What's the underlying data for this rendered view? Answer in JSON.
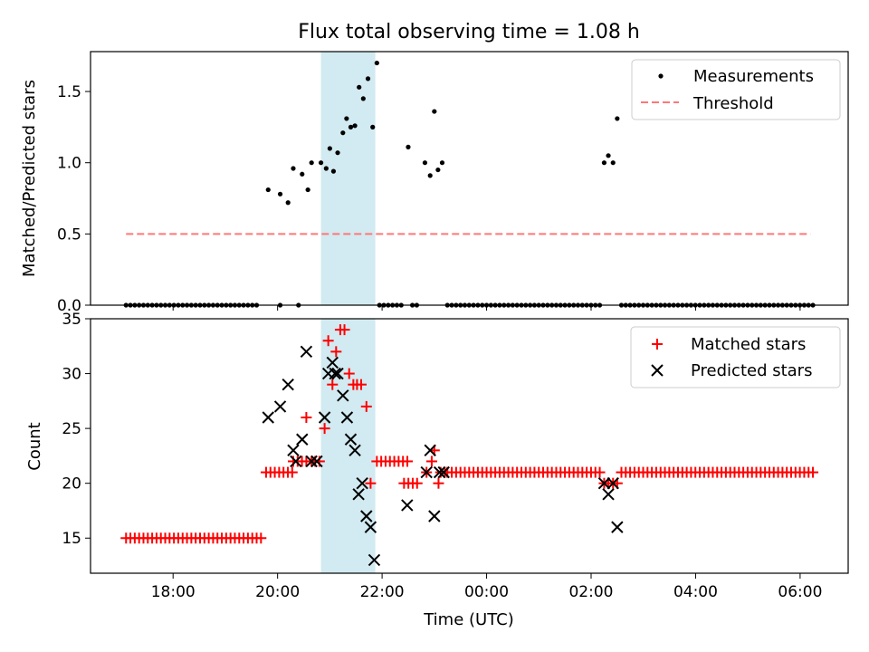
{
  "title": "Flux total observing time = 1.08 h",
  "x_axis": {
    "label": "Time (UTC)",
    "ticks": [
      {
        "t": 18,
        "label": "18:00"
      },
      {
        "t": 20,
        "label": "20:00"
      },
      {
        "t": 22,
        "label": "22:00"
      },
      {
        "t": 24,
        "label": "00:00"
      },
      {
        "t": 26,
        "label": "02:00"
      },
      {
        "t": 28,
        "label": "04:00"
      },
      {
        "t": 30,
        "label": "06:00"
      }
    ],
    "range_hours": [
      16.42,
      30.92
    ]
  },
  "chart_data": [
    {
      "type": "scatter",
      "panel": "top",
      "ylabel": "Matched/Predicted stars",
      "ylim": [
        0,
        1.78
      ],
      "yticks": [
        {
          "v": 0.0,
          "label": "0.0"
        },
        {
          "v": 0.5,
          "label": "0.5"
        },
        {
          "v": 1.0,
          "label": "1.0"
        },
        {
          "v": 1.5,
          "label": "1.5"
        }
      ],
      "highlight_span": [
        20.83,
        21.87
      ],
      "highlight_color": "#add8e6",
      "legend_position": "upper right",
      "series": [
        {
          "name": "Measurements",
          "marker": "dot",
          "color": "#000000",
          "points": [
            [
              19.82,
              0.81
            ],
            [
              20.05,
              0.78
            ],
            [
              20.2,
              0.72
            ],
            [
              20.3,
              0.96
            ],
            [
              20.47,
              0.92
            ],
            [
              20.58,
              0.81
            ],
            [
              20.65,
              1.0
            ],
            [
              20.83,
              1.0
            ],
            [
              20.93,
              0.96
            ],
            [
              21.0,
              1.1
            ],
            [
              21.07,
              0.94
            ],
            [
              21.15,
              1.07
            ],
            [
              21.25,
              1.21
            ],
            [
              21.32,
              1.31
            ],
            [
              21.4,
              1.25
            ],
            [
              21.48,
              1.26
            ],
            [
              21.56,
              1.53
            ],
            [
              21.64,
              1.45
            ],
            [
              21.73,
              1.59
            ],
            [
              21.82,
              1.25
            ],
            [
              21.9,
              1.7
            ],
            [
              22.5,
              1.11
            ],
            [
              22.82,
              1.0
            ],
            [
              22.92,
              0.91
            ],
            [
              23.0,
              1.36
            ],
            [
              23.07,
              0.95
            ],
            [
              23.15,
              1.0
            ],
            [
              26.25,
              1.0
            ],
            [
              26.33,
              1.05
            ],
            [
              26.42,
              1.0
            ],
            [
              26.5,
              1.31
            ]
          ],
          "zero_ranges": [
            [
              17.1,
              19.65
            ],
            [
              20.05,
              20.05
            ],
            [
              20.4,
              20.4
            ],
            [
              21.95,
              22.4
            ],
            [
              22.58,
              22.7
            ],
            [
              23.25,
              26.2
            ],
            [
              26.58,
              30.32
            ]
          ],
          "zero_step": 0.0833
        },
        {
          "name": "Threshold",
          "marker": "dashed-line",
          "color": "#ff7777",
          "points": [
            [
              17.1,
              0.5
            ],
            [
              30.2,
              0.5
            ]
          ]
        }
      ]
    },
    {
      "type": "scatter",
      "panel": "bottom",
      "ylabel": "Count",
      "ylim": [
        11.8,
        35
      ],
      "yticks": [
        {
          "v": 15,
          "label": "15"
        },
        {
          "v": 20,
          "label": "20"
        },
        {
          "v": 25,
          "label": "25"
        },
        {
          "v": 30,
          "label": "30"
        },
        {
          "v": 35,
          "label": "35"
        }
      ],
      "highlight_span": [
        20.83,
        21.87
      ],
      "highlight_color": "#add8e6",
      "legend_position": "upper right",
      "series": [
        {
          "name": "Matched stars",
          "marker": "plus",
          "color": "#ff0000",
          "runs": [
            {
              "from": 17.1,
              "to": 19.7,
              "value": 15
            },
            {
              "from": 19.78,
              "to": 20.3,
              "value": 21
            },
            {
              "from": 20.3,
              "to": 20.6,
              "value": 22
            },
            {
              "from": 21.9,
              "to": 22.5,
              "value": 22
            },
            {
              "from": 22.42,
              "to": 22.75,
              "value": 20
            },
            {
              "from": 23.25,
              "to": 26.2,
              "value": 21
            },
            {
              "from": 26.58,
              "to": 30.32,
              "value": 21
            }
          ],
          "run_step": 0.0833,
          "points": [
            [
              20.55,
              26
            ],
            [
              20.65,
              22
            ],
            [
              20.72,
              22
            ],
            [
              20.8,
              22
            ],
            [
              20.9,
              25
            ],
            [
              20.97,
              33
            ],
            [
              21.05,
              29
            ],
            [
              21.12,
              32
            ],
            [
              21.2,
              34
            ],
            [
              21.28,
              34
            ],
            [
              21.37,
              30
            ],
            [
              21.45,
              29
            ],
            [
              21.52,
              29
            ],
            [
              21.6,
              29
            ],
            [
              21.7,
              27
            ],
            [
              21.78,
              20
            ],
            [
              22.85,
              21
            ],
            [
              22.95,
              22
            ],
            [
              23.0,
              23
            ],
            [
              23.08,
              20
            ],
            [
              23.12,
              21
            ],
            [
              23.2,
              21
            ],
            [
              26.25,
              20
            ],
            [
              26.33,
              20
            ],
            [
              26.42,
              20
            ],
            [
              26.5,
              20
            ]
          ]
        },
        {
          "name": "Predicted stars",
          "marker": "x",
          "color": "#000000",
          "points": [
            [
              19.82,
              26
            ],
            [
              20.05,
              27
            ],
            [
              20.2,
              29
            ],
            [
              20.3,
              23
            ],
            [
              20.35,
              22
            ],
            [
              20.47,
              24
            ],
            [
              20.55,
              32
            ],
            [
              20.65,
              22
            ],
            [
              20.75,
              22
            ],
            [
              20.9,
              26
            ],
            [
              20.97,
              30
            ],
            [
              21.05,
              31
            ],
            [
              21.1,
              30
            ],
            [
              21.15,
              30
            ],
            [
              21.25,
              28
            ],
            [
              21.33,
              26
            ],
            [
              21.4,
              24
            ],
            [
              21.48,
              23
            ],
            [
              21.55,
              19
            ],
            [
              21.62,
              20
            ],
            [
              21.7,
              17
            ],
            [
              21.78,
              16
            ],
            [
              21.85,
              13
            ],
            [
              22.48,
              18
            ],
            [
              22.85,
              21
            ],
            [
              22.92,
              23
            ],
            [
              23.0,
              17
            ],
            [
              23.1,
              21
            ],
            [
              23.18,
              21
            ],
            [
              26.25,
              20
            ],
            [
              26.33,
              19
            ],
            [
              26.42,
              20
            ],
            [
              26.5,
              16
            ]
          ]
        }
      ]
    }
  ]
}
